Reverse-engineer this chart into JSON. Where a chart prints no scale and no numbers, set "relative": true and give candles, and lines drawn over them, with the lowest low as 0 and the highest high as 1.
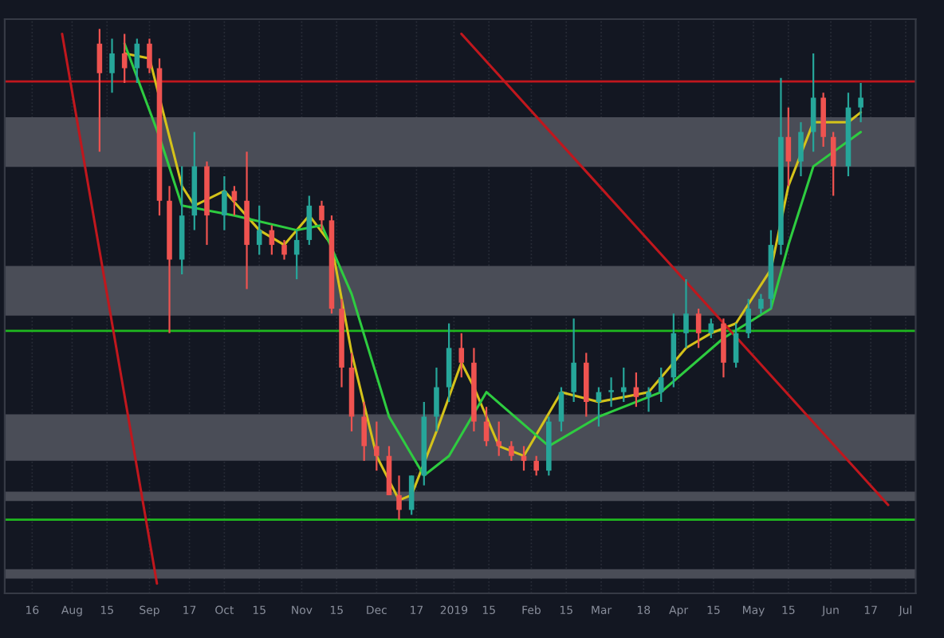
{
  "chart_data": {
    "type": "candlestick",
    "relative": true,
    "grid": "x",
    "xlim": [
      "2018-07-05",
      "2019-07-05"
    ],
    "xticks": [
      {
        "value": "2018-07-16",
        "label": "16"
      },
      {
        "value": "2018-08-01",
        "label": "Aug"
      },
      {
        "value": "2018-08-15",
        "label": "15"
      },
      {
        "value": "2018-09-01",
        "label": "Sep"
      },
      {
        "value": "2018-09-17",
        "label": "17"
      },
      {
        "value": "2018-10-01",
        "label": "Oct"
      },
      {
        "value": "2018-10-15",
        "label": "15"
      },
      {
        "value": "2018-11-01",
        "label": "Nov"
      },
      {
        "value": "2018-11-15",
        "label": "15"
      },
      {
        "value": "2018-12-01",
        "label": "Dec"
      },
      {
        "value": "2018-12-17",
        "label": "17"
      },
      {
        "value": "2019-01-01",
        "label": "2019"
      },
      {
        "value": "2019-01-15",
        "label": "15"
      },
      {
        "value": "2019-02-01",
        "label": "Feb"
      },
      {
        "value": "2019-02-15",
        "label": "15"
      },
      {
        "value": "2019-03-01",
        "label": "Mar"
      },
      {
        "value": "2019-03-18",
        "label": "18"
      },
      {
        "value": "2019-04-01",
        "label": "Apr"
      },
      {
        "value": "2019-04-15",
        "label": "15"
      },
      {
        "value": "2019-05-01",
        "label": "May"
      },
      {
        "value": "2019-05-15",
        "label": "15"
      },
      {
        "value": "2019-06-01",
        "label": "Jun"
      },
      {
        "value": "2019-06-17",
        "label": "17"
      },
      {
        "value": "2019-07-01",
        "label": "Jul"
      }
    ],
    "x": [
      "2018-08-12",
      "2018-08-17",
      "2018-08-22",
      "2018-08-27",
      "2018-09-01",
      "2018-09-05",
      "2018-09-09",
      "2018-09-14",
      "2018-09-19",
      "2018-09-24",
      "2018-10-01",
      "2018-10-05",
      "2018-10-10",
      "2018-10-15",
      "2018-10-20",
      "2018-10-25",
      "2018-10-30",
      "2018-11-04",
      "2018-11-09",
      "2018-11-13",
      "2018-11-17",
      "2018-11-21",
      "2018-11-26",
      "2018-12-01",
      "2018-12-06",
      "2018-12-10",
      "2018-12-15",
      "2018-12-20",
      "2018-12-25",
      "2018-12-30",
      "2019-01-04",
      "2019-01-09",
      "2019-01-14",
      "2019-01-19",
      "2019-01-24",
      "2019-01-29",
      "2019-02-03",
      "2019-02-08",
      "2019-02-13",
      "2019-02-18",
      "2019-02-23",
      "2019-02-28",
      "2019-03-05",
      "2019-03-10",
      "2019-03-15",
      "2019-03-20",
      "2019-03-25",
      "2019-03-30",
      "2019-04-04",
      "2019-04-09",
      "2019-04-14",
      "2019-04-19",
      "2019-04-24",
      "2019-04-29",
      "2019-05-04",
      "2019-05-08",
      "2019-05-12",
      "2019-05-15",
      "2019-05-20",
      "2019-05-25",
      "2019-05-29",
      "2019-06-02",
      "2019-06-08",
      "2019-06-13"
    ],
    "ohlc": [
      [
        0.97,
        1.0,
        0.75,
        0.91
      ],
      [
        0.91,
        0.98,
        0.87,
        0.95
      ],
      [
        0.95,
        0.99,
        0.89,
        0.92
      ],
      [
        0.92,
        0.98,
        0.89,
        0.97
      ],
      [
        0.97,
        0.98,
        0.91,
        0.92
      ],
      [
        0.92,
        0.94,
        0.62,
        0.65
      ],
      [
        0.65,
        0.68,
        0.38,
        0.53
      ],
      [
        0.53,
        0.72,
        0.5,
        0.62
      ],
      [
        0.62,
        0.79,
        0.59,
        0.72
      ],
      [
        0.72,
        0.73,
        0.56,
        0.62
      ],
      [
        0.62,
        0.7,
        0.59,
        0.67
      ],
      [
        0.67,
        0.68,
        0.62,
        0.65
      ],
      [
        0.65,
        0.75,
        0.47,
        0.56
      ],
      [
        0.56,
        0.64,
        0.54,
        0.59
      ],
      [
        0.59,
        0.6,
        0.54,
        0.56
      ],
      [
        0.56,
        0.57,
        0.53,
        0.54
      ],
      [
        0.54,
        0.59,
        0.49,
        0.57
      ],
      [
        0.57,
        0.66,
        0.56,
        0.64
      ],
      [
        0.64,
        0.65,
        0.59,
        0.61
      ],
      [
        0.61,
        0.62,
        0.42,
        0.43
      ],
      [
        0.43,
        0.45,
        0.27,
        0.31
      ],
      [
        0.31,
        0.34,
        0.18,
        0.21
      ],
      [
        0.21,
        0.24,
        0.12,
        0.15
      ],
      [
        0.15,
        0.2,
        0.1,
        0.13
      ],
      [
        0.13,
        0.15,
        0.05,
        0.05
      ],
      [
        0.05,
        0.09,
        0.0,
        0.02
      ],
      [
        0.02,
        0.09,
        0.01,
        0.09
      ],
      [
        0.09,
        0.24,
        0.07,
        0.21
      ],
      [
        0.21,
        0.31,
        0.18,
        0.27
      ],
      [
        0.27,
        0.4,
        0.24,
        0.35
      ],
      [
        0.35,
        0.38,
        0.29,
        0.32
      ],
      [
        0.32,
        0.35,
        0.18,
        0.2
      ],
      [
        0.2,
        0.23,
        0.15,
        0.16
      ],
      [
        0.16,
        0.2,
        0.13,
        0.15
      ],
      [
        0.15,
        0.16,
        0.12,
        0.13
      ],
      [
        0.13,
        0.15,
        0.1,
        0.12
      ],
      [
        0.12,
        0.13,
        0.09,
        0.1
      ],
      [
        0.1,
        0.21,
        0.09,
        0.2
      ],
      [
        0.2,
        0.27,
        0.18,
        0.26
      ],
      [
        0.26,
        0.41,
        0.24,
        0.32
      ],
      [
        0.32,
        0.34,
        0.21,
        0.24
      ],
      [
        0.24,
        0.27,
        0.19,
        0.26
      ],
      [
        0.26,
        0.29,
        0.23,
        0.26
      ],
      [
        0.26,
        0.31,
        0.24,
        0.27
      ],
      [
        0.27,
        0.3,
        0.23,
        0.25
      ],
      [
        0.25,
        0.27,
        0.22,
        0.26
      ],
      [
        0.26,
        0.31,
        0.24,
        0.29
      ],
      [
        0.29,
        0.42,
        0.27,
        0.38
      ],
      [
        0.38,
        0.49,
        0.35,
        0.42
      ],
      [
        0.42,
        0.43,
        0.35,
        0.38
      ],
      [
        0.38,
        0.41,
        0.37,
        0.4
      ],
      [
        0.4,
        0.41,
        0.29,
        0.32
      ],
      [
        0.32,
        0.4,
        0.31,
        0.38
      ],
      [
        0.38,
        0.45,
        0.37,
        0.43
      ],
      [
        0.43,
        0.46,
        0.42,
        0.45
      ],
      [
        0.45,
        0.59,
        0.43,
        0.56
      ],
      [
        0.56,
        0.9,
        0.54,
        0.78
      ],
      [
        0.78,
        0.84,
        0.68,
        0.73
      ],
      [
        0.73,
        0.81,
        0.7,
        0.79
      ],
      [
        0.79,
        0.95,
        0.75,
        0.86
      ],
      [
        0.86,
        0.87,
        0.76,
        0.78
      ],
      [
        0.78,
        0.79,
        0.66,
        0.72
      ],
      [
        0.72,
        0.87,
        0.7,
        0.84
      ],
      [
        0.84,
        0.89,
        0.81,
        0.86
      ]
    ],
    "colors": [
      "#ef5350",
      "#26a69a",
      "#ef5350",
      "#26a69a",
      "#ef5350",
      "#ef5350",
      "#ef5350",
      "#26a69a",
      "#26a69a",
      "#ef5350",
      "#26a69a",
      "#ef5350",
      "#ef5350",
      "#26a69a",
      "#ef5350",
      "#ef5350",
      "#26a69a",
      "#26a69a",
      "#ef5350",
      "#ef5350",
      "#ef5350",
      "#ef5350",
      "#ef5350",
      "#ef5350",
      "#ef5350",
      "#ef5350",
      "#26a69a",
      "#26a69a",
      "#26a69a",
      "#26a69a",
      "#ef5350",
      "#ef5350",
      "#ef5350",
      "#ef5350",
      "#ef5350",
      "#ef5350",
      "#ef5350",
      "#26a69a",
      "#26a69a",
      "#26a69a",
      "#ef5350",
      "#26a69a",
      "#26a69a",
      "#26a69a",
      "#ef5350",
      "#26a69a",
      "#26a69a",
      "#26a69a",
      "#26a69a",
      "#ef5350",
      "#26a69a",
      "#ef5350",
      "#26a69a",
      "#26a69a",
      "#26a69a",
      "#26a69a",
      "#26a69a",
      "#ef5350",
      "#26a69a",
      "#26a69a",
      "#ef5350",
      "#ef5350",
      "#26a69a",
      "#26a69a"
    ],
    "series": [
      {
        "type": "line",
        "color": "#d4c21a",
        "x": [
          "2018-08-22",
          "2018-09-01",
          "2018-09-14",
          "2018-09-19",
          "2018-10-01",
          "2018-10-15",
          "2018-10-25",
          "2018-11-04",
          "2018-11-13",
          "2018-11-21",
          "2018-12-01",
          "2018-12-10",
          "2018-12-15",
          "2018-12-25",
          "2019-01-04",
          "2019-01-09",
          "2019-01-19",
          "2019-01-29",
          "2019-02-13",
          "2019-02-28",
          "2019-03-20",
          "2019-04-04",
          "2019-04-14",
          "2019-04-24",
          "2019-05-08",
          "2019-05-15",
          "2019-05-25",
          "2019-06-08",
          "2019-06-13"
        ],
        "values": [
          0.95,
          0.94,
          0.68,
          0.64,
          0.67,
          0.59,
          0.56,
          0.62,
          0.56,
          0.34,
          0.13,
          0.04,
          0.05,
          0.18,
          0.32,
          0.27,
          0.15,
          0.13,
          0.26,
          0.24,
          0.26,
          0.35,
          0.38,
          0.4,
          0.51,
          0.68,
          0.81,
          0.81,
          0.83
        ]
      },
      {
        "type": "line",
        "color": "#2ecc40",
        "x": [
          "2018-08-22",
          "2018-09-05",
          "2018-09-14",
          "2018-10-05",
          "2018-10-30",
          "2018-11-09",
          "2018-11-21",
          "2018-12-06",
          "2018-12-20",
          "2018-12-30",
          "2019-01-14",
          "2019-02-08",
          "2019-02-28",
          "2019-03-25",
          "2019-04-19",
          "2019-05-08",
          "2019-05-15",
          "2019-05-25",
          "2019-06-13"
        ],
        "values": [
          0.97,
          0.78,
          0.64,
          0.62,
          0.59,
          0.6,
          0.46,
          0.21,
          0.09,
          0.13,
          0.26,
          0.15,
          0.21,
          0.26,
          0.37,
          0.43,
          0.56,
          0.72,
          0.79
        ]
      },
      {
        "type": "line",
        "color": "#c0171d",
        "x": [
          "2018-07-28",
          "2018-09-04"
        ],
        "values": [
          0.99,
          -0.13
        ]
      },
      {
        "type": "line",
        "color": "#c0171d",
        "x": [
          "2019-01-04",
          "2019-06-24"
        ],
        "values": [
          0.99,
          0.03
        ]
      }
    ],
    "bands": [
      {
        "axis": "y",
        "from": 0.719,
        "to": 0.82,
        "color": "#4a4d57"
      },
      {
        "axis": "y",
        "from": 0.416,
        "to": 0.517,
        "color": "#4a4d57"
      },
      {
        "axis": "y",
        "from": 0.12,
        "to": 0.215,
        "color": "#4a4d57"
      },
      {
        "axis": "y",
        "from": 0.038,
        "to": 0.057,
        "color": "#4a4d57"
      },
      {
        "axis": "y",
        "from": -0.12,
        "to": -0.101,
        "color": "#4a4d57"
      }
    ],
    "ref_lines": [
      {
        "axis": "y",
        "value": 0.385,
        "color": "#1fb81f",
        "line_style": "solid"
      },
      {
        "axis": "y",
        "value": 0.0,
        "color": "#1fb81f",
        "line_style": "solid"
      },
      {
        "axis": "y",
        "value": 0.893,
        "color": "#c0171d",
        "line_style": "solid"
      }
    ]
  }
}
